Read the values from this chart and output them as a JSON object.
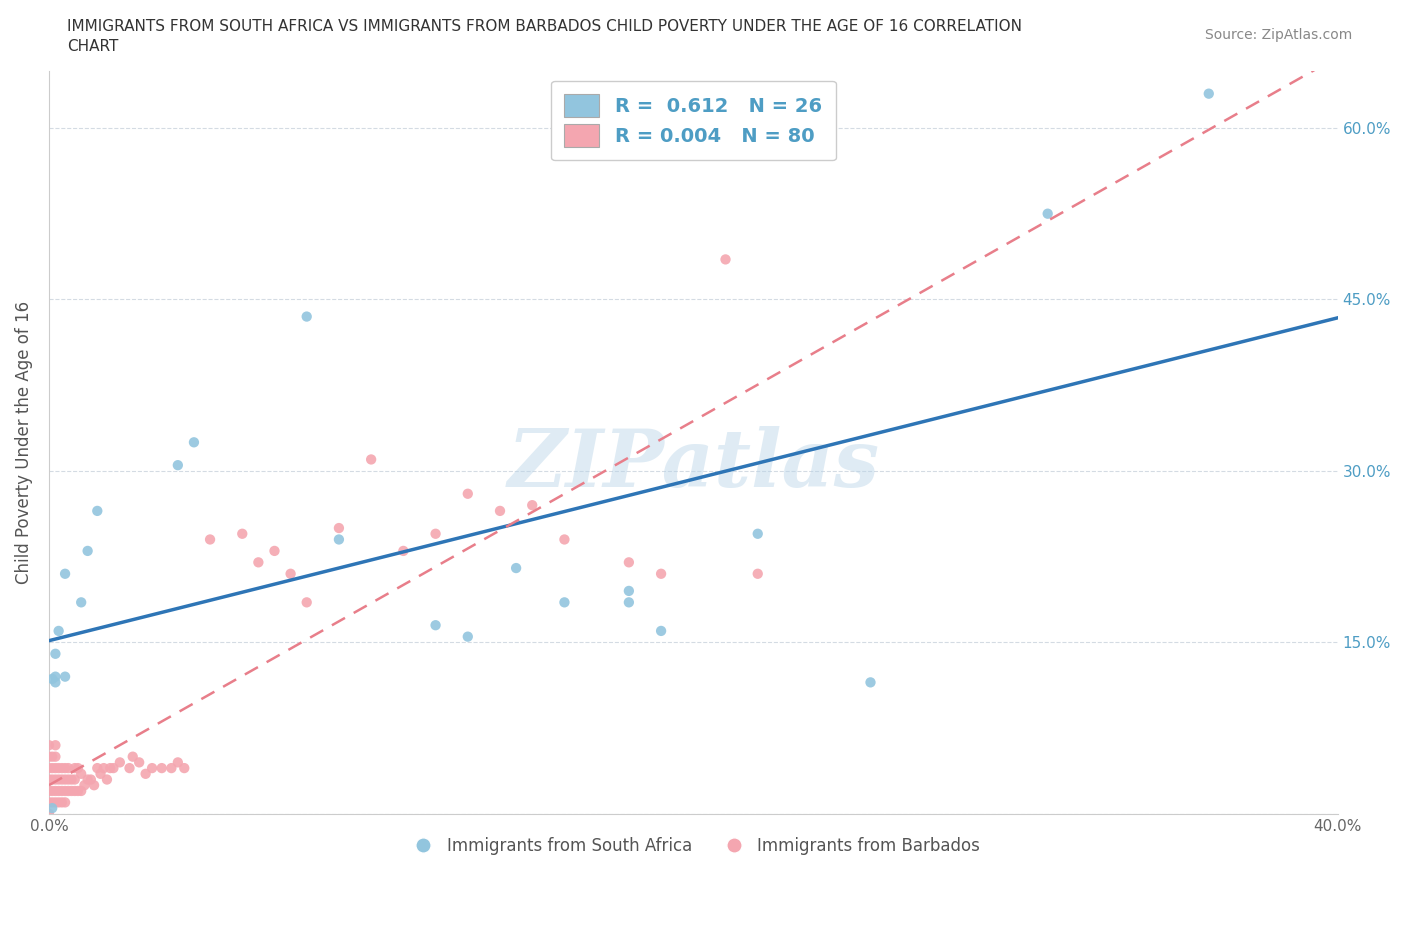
{
  "title_line1": "IMMIGRANTS FROM SOUTH AFRICA VS IMMIGRANTS FROM BARBADOS CHILD POVERTY UNDER THE AGE OF 16 CORRELATION",
  "title_line2": "CHART",
  "source_text": "Source: ZipAtlas.com",
  "ylabel": "Child Poverty Under the Age of 16",
  "xlim": [
    0.0,
    0.4
  ],
  "ylim": [
    0.0,
    0.65
  ],
  "xtick_vals": [
    0.0,
    0.1,
    0.2,
    0.3,
    0.4
  ],
  "xtick_labels": [
    "0.0%",
    "",
    "",
    "",
    "40.0%"
  ],
  "ytick_vals": [
    0.0,
    0.15,
    0.3,
    0.45,
    0.6
  ],
  "ytick_labels_right": [
    "",
    "15.0%",
    "30.0%",
    "45.0%",
    "60.0%"
  ],
  "color_sa": "#92c5de",
  "color_bb": "#f4a6b0",
  "line_sa_color": "#2e75b6",
  "line_bb_color": "#e87e8a",
  "watermark": "ZIPatlas",
  "south_africa_x": [
    0.001,
    0.002,
    0.002,
    0.002,
    0.003,
    0.005,
    0.005,
    0.01,
    0.012,
    0.015,
    0.04,
    0.045,
    0.08,
    0.09,
    0.12,
    0.13,
    0.145,
    0.16,
    0.18,
    0.18,
    0.19,
    0.22,
    0.255,
    0.31,
    0.36,
    0.001
  ],
  "south_africa_y": [
    0.005,
    0.14,
    0.115,
    0.12,
    0.16,
    0.12,
    0.21,
    0.185,
    0.23,
    0.265,
    0.305,
    0.325,
    0.435,
    0.24,
    0.165,
    0.155,
    0.215,
    0.185,
    0.195,
    0.185,
    0.16,
    0.245,
    0.115,
    0.525,
    0.63,
    0.118
  ],
  "barbados_x": [
    0.0,
    0.0,
    0.0,
    0.0,
    0.0,
    0.0,
    0.0,
    0.001,
    0.001,
    0.001,
    0.001,
    0.001,
    0.002,
    0.002,
    0.002,
    0.002,
    0.002,
    0.002,
    0.003,
    0.003,
    0.003,
    0.003,
    0.004,
    0.004,
    0.004,
    0.004,
    0.005,
    0.005,
    0.005,
    0.005,
    0.006,
    0.006,
    0.006,
    0.007,
    0.007,
    0.008,
    0.008,
    0.008,
    0.009,
    0.009,
    0.01,
    0.01,
    0.011,
    0.012,
    0.013,
    0.014,
    0.015,
    0.016,
    0.017,
    0.018,
    0.019,
    0.02,
    0.022,
    0.025,
    0.026,
    0.028,
    0.03,
    0.032,
    0.035,
    0.038,
    0.04,
    0.042,
    0.05,
    0.06,
    0.065,
    0.07,
    0.075,
    0.08,
    0.09,
    0.1,
    0.11,
    0.12,
    0.13,
    0.14,
    0.15,
    0.16,
    0.18,
    0.19,
    0.21,
    0.22
  ],
  "barbados_y": [
    0.0,
    0.01,
    0.02,
    0.03,
    0.04,
    0.05,
    0.06,
    0.01,
    0.02,
    0.03,
    0.04,
    0.05,
    0.01,
    0.02,
    0.03,
    0.04,
    0.05,
    0.06,
    0.01,
    0.02,
    0.03,
    0.04,
    0.01,
    0.02,
    0.03,
    0.04,
    0.01,
    0.02,
    0.03,
    0.04,
    0.02,
    0.03,
    0.04,
    0.02,
    0.03,
    0.02,
    0.03,
    0.04,
    0.02,
    0.04,
    0.02,
    0.035,
    0.025,
    0.03,
    0.03,
    0.025,
    0.04,
    0.035,
    0.04,
    0.03,
    0.04,
    0.04,
    0.045,
    0.04,
    0.05,
    0.045,
    0.035,
    0.04,
    0.04,
    0.04,
    0.045,
    0.04,
    0.24,
    0.245,
    0.22,
    0.23,
    0.21,
    0.185,
    0.25,
    0.31,
    0.23,
    0.245,
    0.28,
    0.265,
    0.27,
    0.24,
    0.22,
    0.21,
    0.485,
    0.21
  ]
}
